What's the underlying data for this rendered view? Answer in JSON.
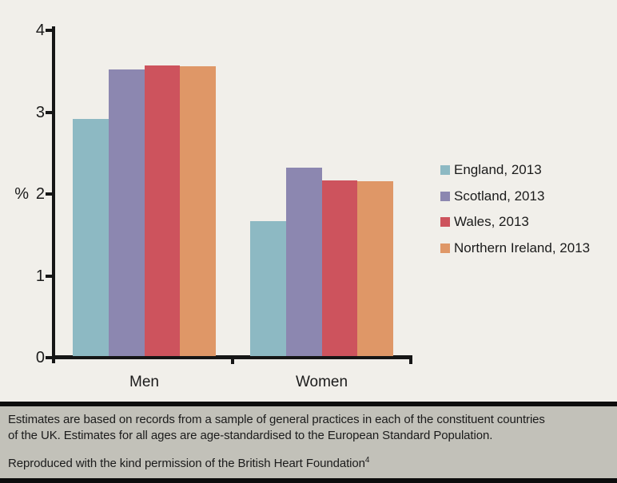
{
  "figure": {
    "background": "#f1efea",
    "caption_background": "#c2c1b9",
    "rule_color": "#0d0d0d",
    "axis_color": "#161616",
    "text_color": "#1b1b1b"
  },
  "chart_data": {
    "type": "bar",
    "title": "",
    "xlabel": "",
    "ylabel": "%",
    "ylim": [
      0,
      4
    ],
    "y_ticks": [
      0,
      1,
      2,
      3,
      4
    ],
    "grid": false,
    "legend_position": "right",
    "categories": [
      "Men",
      "Women"
    ],
    "series": [
      {
        "name": "England, 2013",
        "color": "#8db9c3",
        "values": [
          2.9,
          1.65
        ]
      },
      {
        "name": "Scotland, 2013",
        "color": "#8c87b0",
        "values": [
          3.5,
          2.3
        ]
      },
      {
        "name": "Wales, 2013",
        "color": "#cd535d",
        "values": [
          3.55,
          2.15
        ]
      },
      {
        "name": "Northern Ireland, 2013",
        "color": "#df9767",
        "values": [
          3.54,
          2.14
        ]
      }
    ]
  },
  "caption": {
    "note_line1": "Estimates are based on records from a sample of general practices in each of the constituent countries",
    "note_line2": "of the UK. Estimates for all ages are age-standardised to the European Standard Population.",
    "credit": "Reproduced with the kind permission of the British Heart Foundation",
    "credit_superscript": "4"
  }
}
